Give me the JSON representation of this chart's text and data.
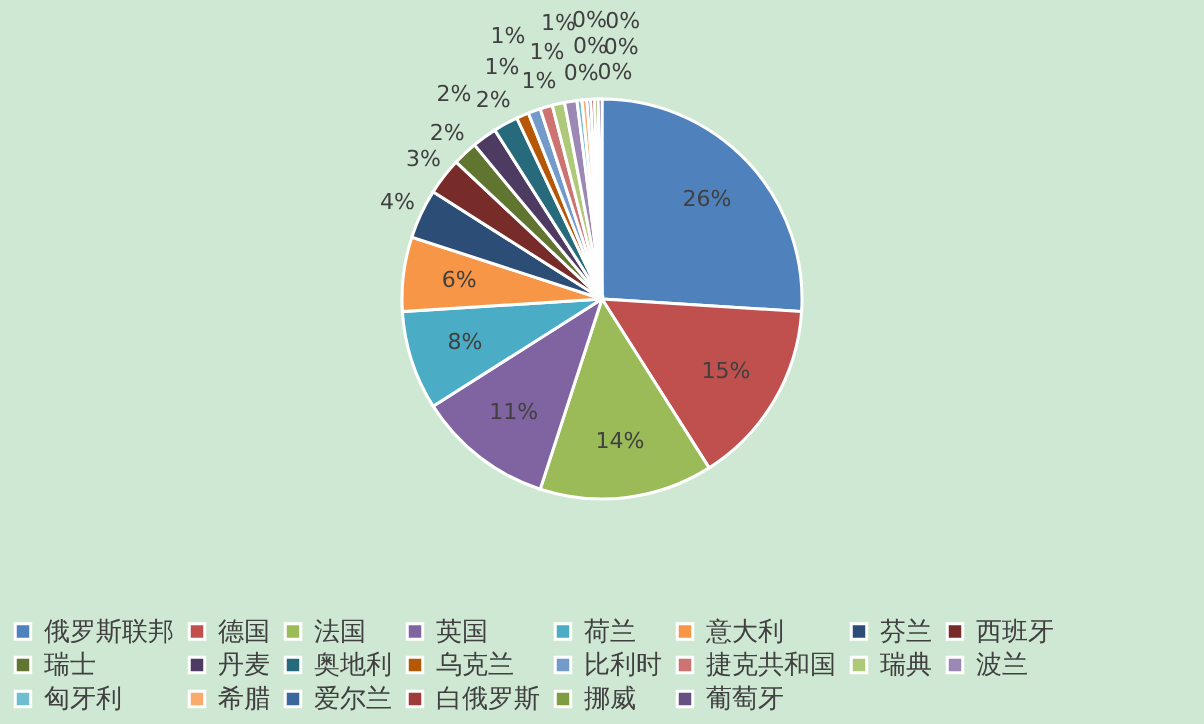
{
  "chart_data": {
    "type": "pie",
    "categories": [
      "俄罗斯联邦",
      "德国",
      "法国",
      "英国",
      "荷兰",
      "意大利",
      "芬兰",
      "西班牙",
      "瑞士",
      "丹麦",
      "奥地利",
      "乌克兰",
      "比利时",
      "捷克共和国",
      "瑞典",
      "波兰",
      "匈牙利",
      "希腊",
      "爱尔兰",
      "白俄罗斯",
      "挪威",
      "葡萄牙"
    ],
    "values": [
      26,
      15,
      14,
      11,
      8,
      6,
      4,
      3,
      2,
      2,
      2,
      1,
      1,
      1,
      1,
      1,
      0.4,
      0.4,
      0.3,
      0.3,
      0.3,
      0.3
    ],
    "value_labels": [
      "26%",
      "15%",
      "14%",
      "11%",
      "8%",
      "6%",
      "4%",
      "3%",
      "2%",
      "2%",
      "2%",
      "1%",
      "1%",
      "1%",
      "1%",
      "1%",
      "0%",
      "0%",
      "0%",
      "0%",
      "0%",
      "0%"
    ],
    "colors": [
      "#4f81bd",
      "#c0504d",
      "#9bbb59",
      "#8064a2",
      "#4bacc6",
      "#f79646",
      "#2c4d75",
      "#772c2a",
      "#5f7530",
      "#4d3b62",
      "#276a7c",
      "#b65708",
      "#729aca",
      "#cd7371",
      "#afc97a",
      "#9c88b5",
      "#6fbdd1",
      "#f9ab6b",
      "#3a679c",
      "#9f3b38",
      "#7e9d40",
      "#664f83"
    ],
    "legend": "bottom"
  }
}
